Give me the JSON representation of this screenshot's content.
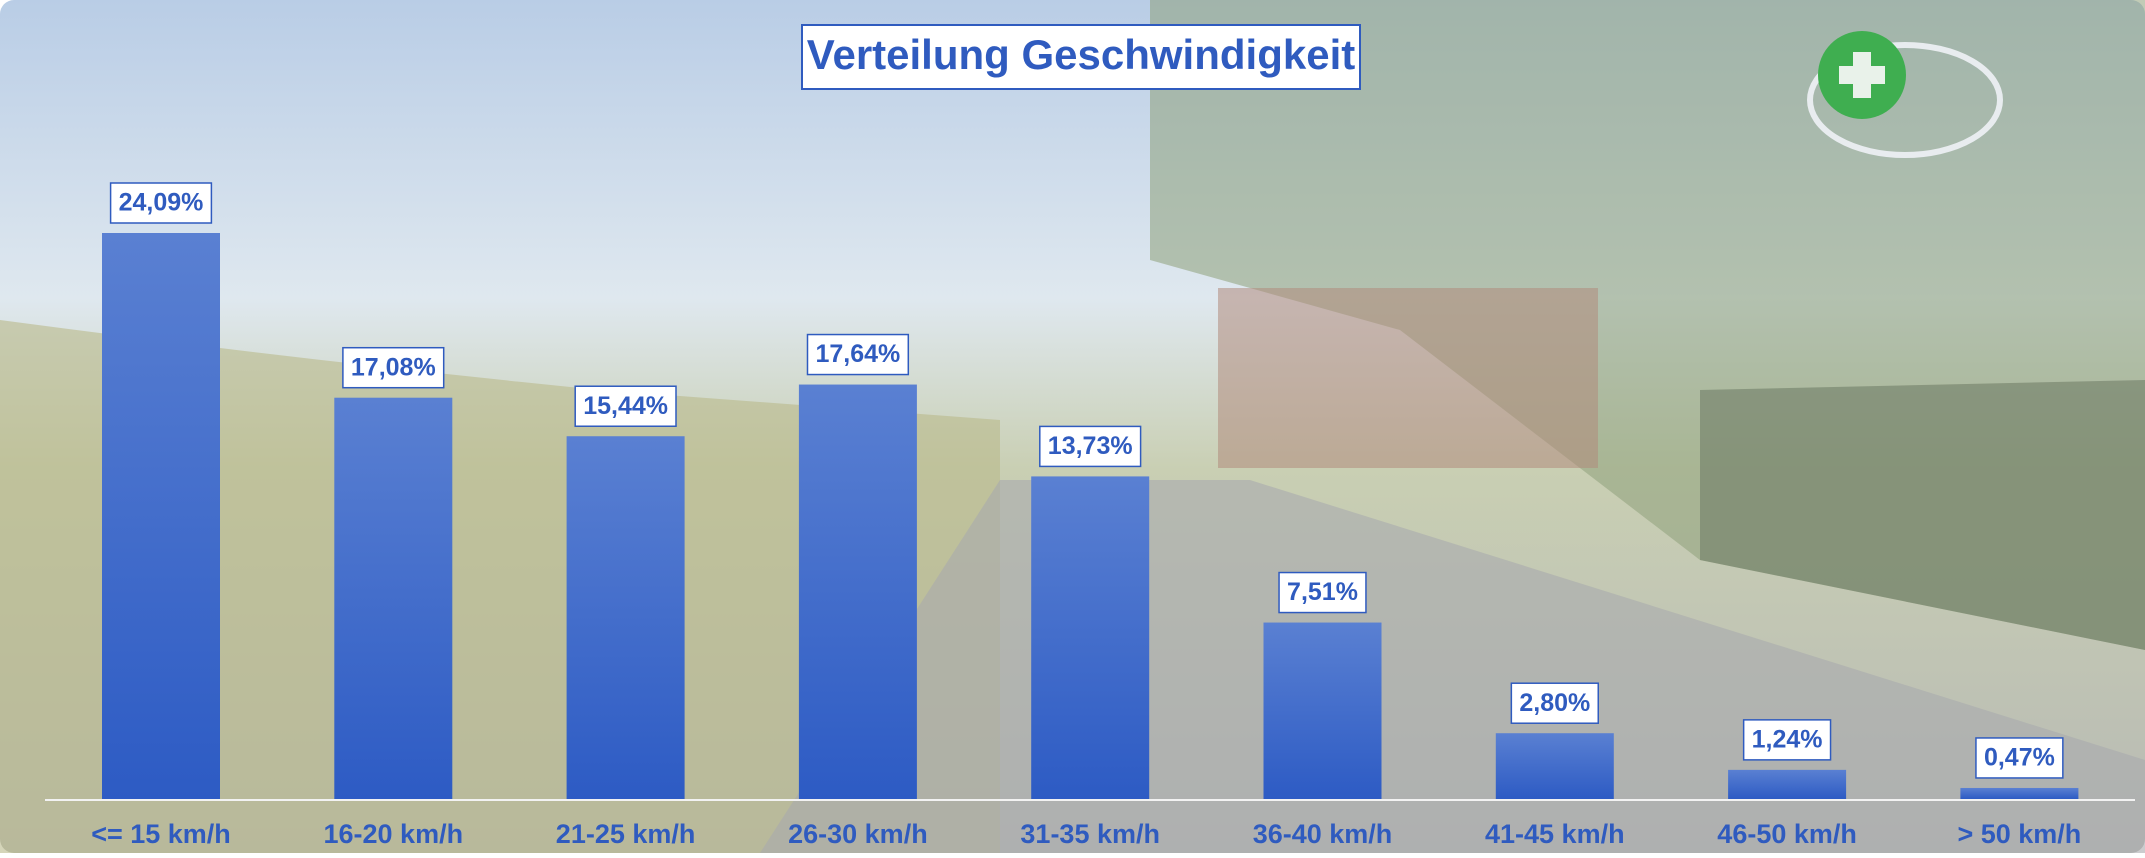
{
  "chart_data": {
    "type": "bar",
    "title": "Verteilung Geschwindigkeit",
    "categories": [
      "<= 15 km/h",
      "16-20 km/h",
      "21-25 km/h",
      "26-30 km/h",
      "31-35 km/h",
      "36-40 km/h",
      "41-45 km/h",
      "46-50 km/h",
      "> 50 km/h"
    ],
    "values": [
      24.09,
      17.08,
      15.44,
      17.64,
      13.73,
      7.51,
      2.8,
      1.24,
      0.47
    ],
    "value_labels": [
      "24,09%",
      "17,08%",
      "15,44%",
      "17,64%",
      "13,73%",
      "7,51%",
      "2,80%",
      "1,24%",
      "0,47%"
    ],
    "color": "#3a66c8"
  }
}
